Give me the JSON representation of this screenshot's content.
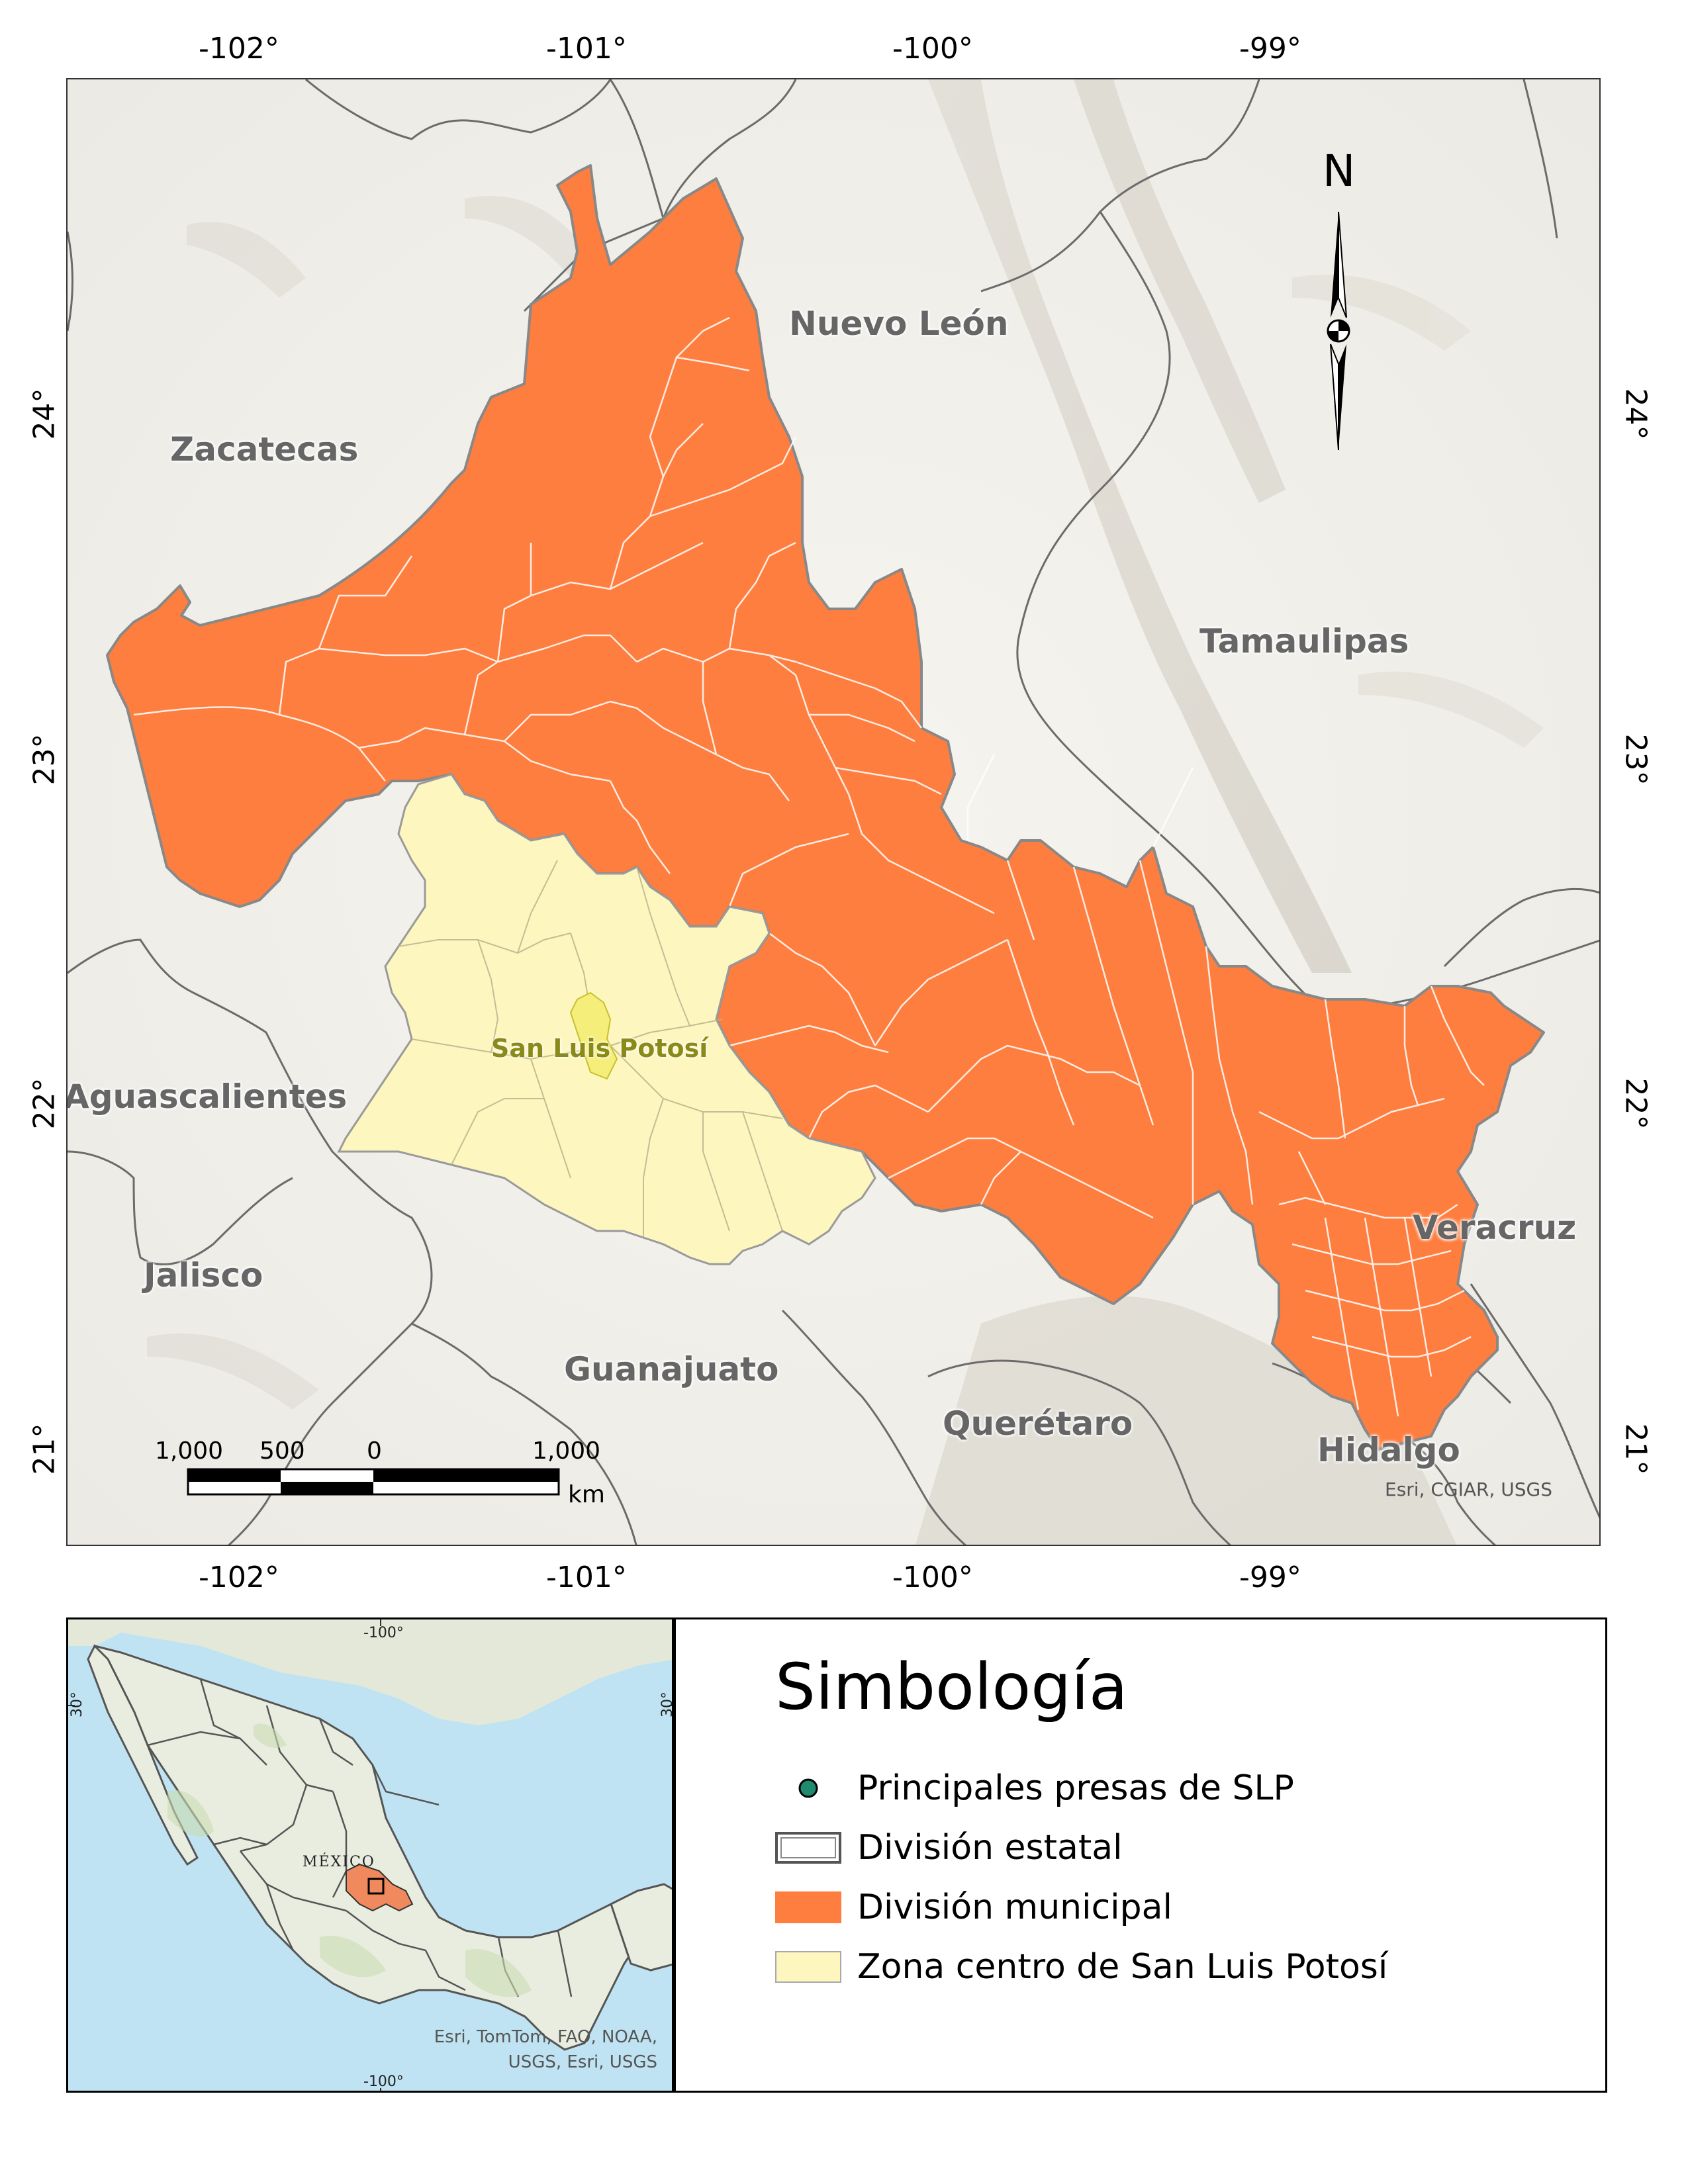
{
  "axes": {
    "top_ticks": [
      "-102°",
      "-101°",
      "-100°",
      "-99°"
    ],
    "bottom_ticks": [
      "-102°",
      "-101°",
      "-100°",
      "-99°"
    ],
    "left_ticks": [
      "24°",
      "23°",
      "22°",
      "21°"
    ],
    "right_ticks": [
      "24°",
      "23°",
      "22°",
      "21°"
    ]
  },
  "map": {
    "states": {
      "nuevo_leon": "Nuevo León",
      "zacatecas": "Zacatecas",
      "tamaulipas": "Tamaulipas",
      "aguascalientes": "Aguascalientes",
      "jalisco": "Jalisco",
      "guanajuato": "Guanajuato",
      "queretaro": "Querétaro",
      "hidalgo": "Hidalgo",
      "veracruz": "Veracruz"
    },
    "city": "San Luis Potosí",
    "north_arrow_label": "N",
    "credits": "Esri, CGIAR, USGS",
    "colors": {
      "municipal_fill": "#fe7e3f",
      "central_zone_fill": "#fdf6bf",
      "background": "#f2f0eb",
      "state_border": "#555555"
    }
  },
  "scale_bar": {
    "labels": [
      "1,000",
      "500",
      "0",
      "1,000"
    ],
    "unit": "km"
  },
  "inset": {
    "country_label": "MÉXICO",
    "top_tick": "-100°",
    "bottom_tick": "-100°",
    "left_tick": "30°",
    "right_tick": "30°",
    "credits_line1": "Esri, TomTom, FAO, NOAA,",
    "credits_line2": "USGS, Esri, USGS",
    "colors": {
      "sea": "#bfe3f2",
      "land": "#e9ede0",
      "slp_fill": "#f08a5e"
    }
  },
  "legend": {
    "title": "Simbología",
    "items": [
      {
        "label": "Principales presas de SLP",
        "symbol": "dam-point-icon",
        "color": "#1f8a6e"
      },
      {
        "label": "División estatal",
        "symbol": "state-division-swatch",
        "color": "#ffffff"
      },
      {
        "label": "División municipal",
        "symbol": "municipal-division-swatch",
        "color": "#fe7e3f"
      },
      {
        "label": "Zona centro de San Luis Potosí",
        "symbol": "central-zone-swatch",
        "color": "#fdf6bf"
      }
    ]
  }
}
